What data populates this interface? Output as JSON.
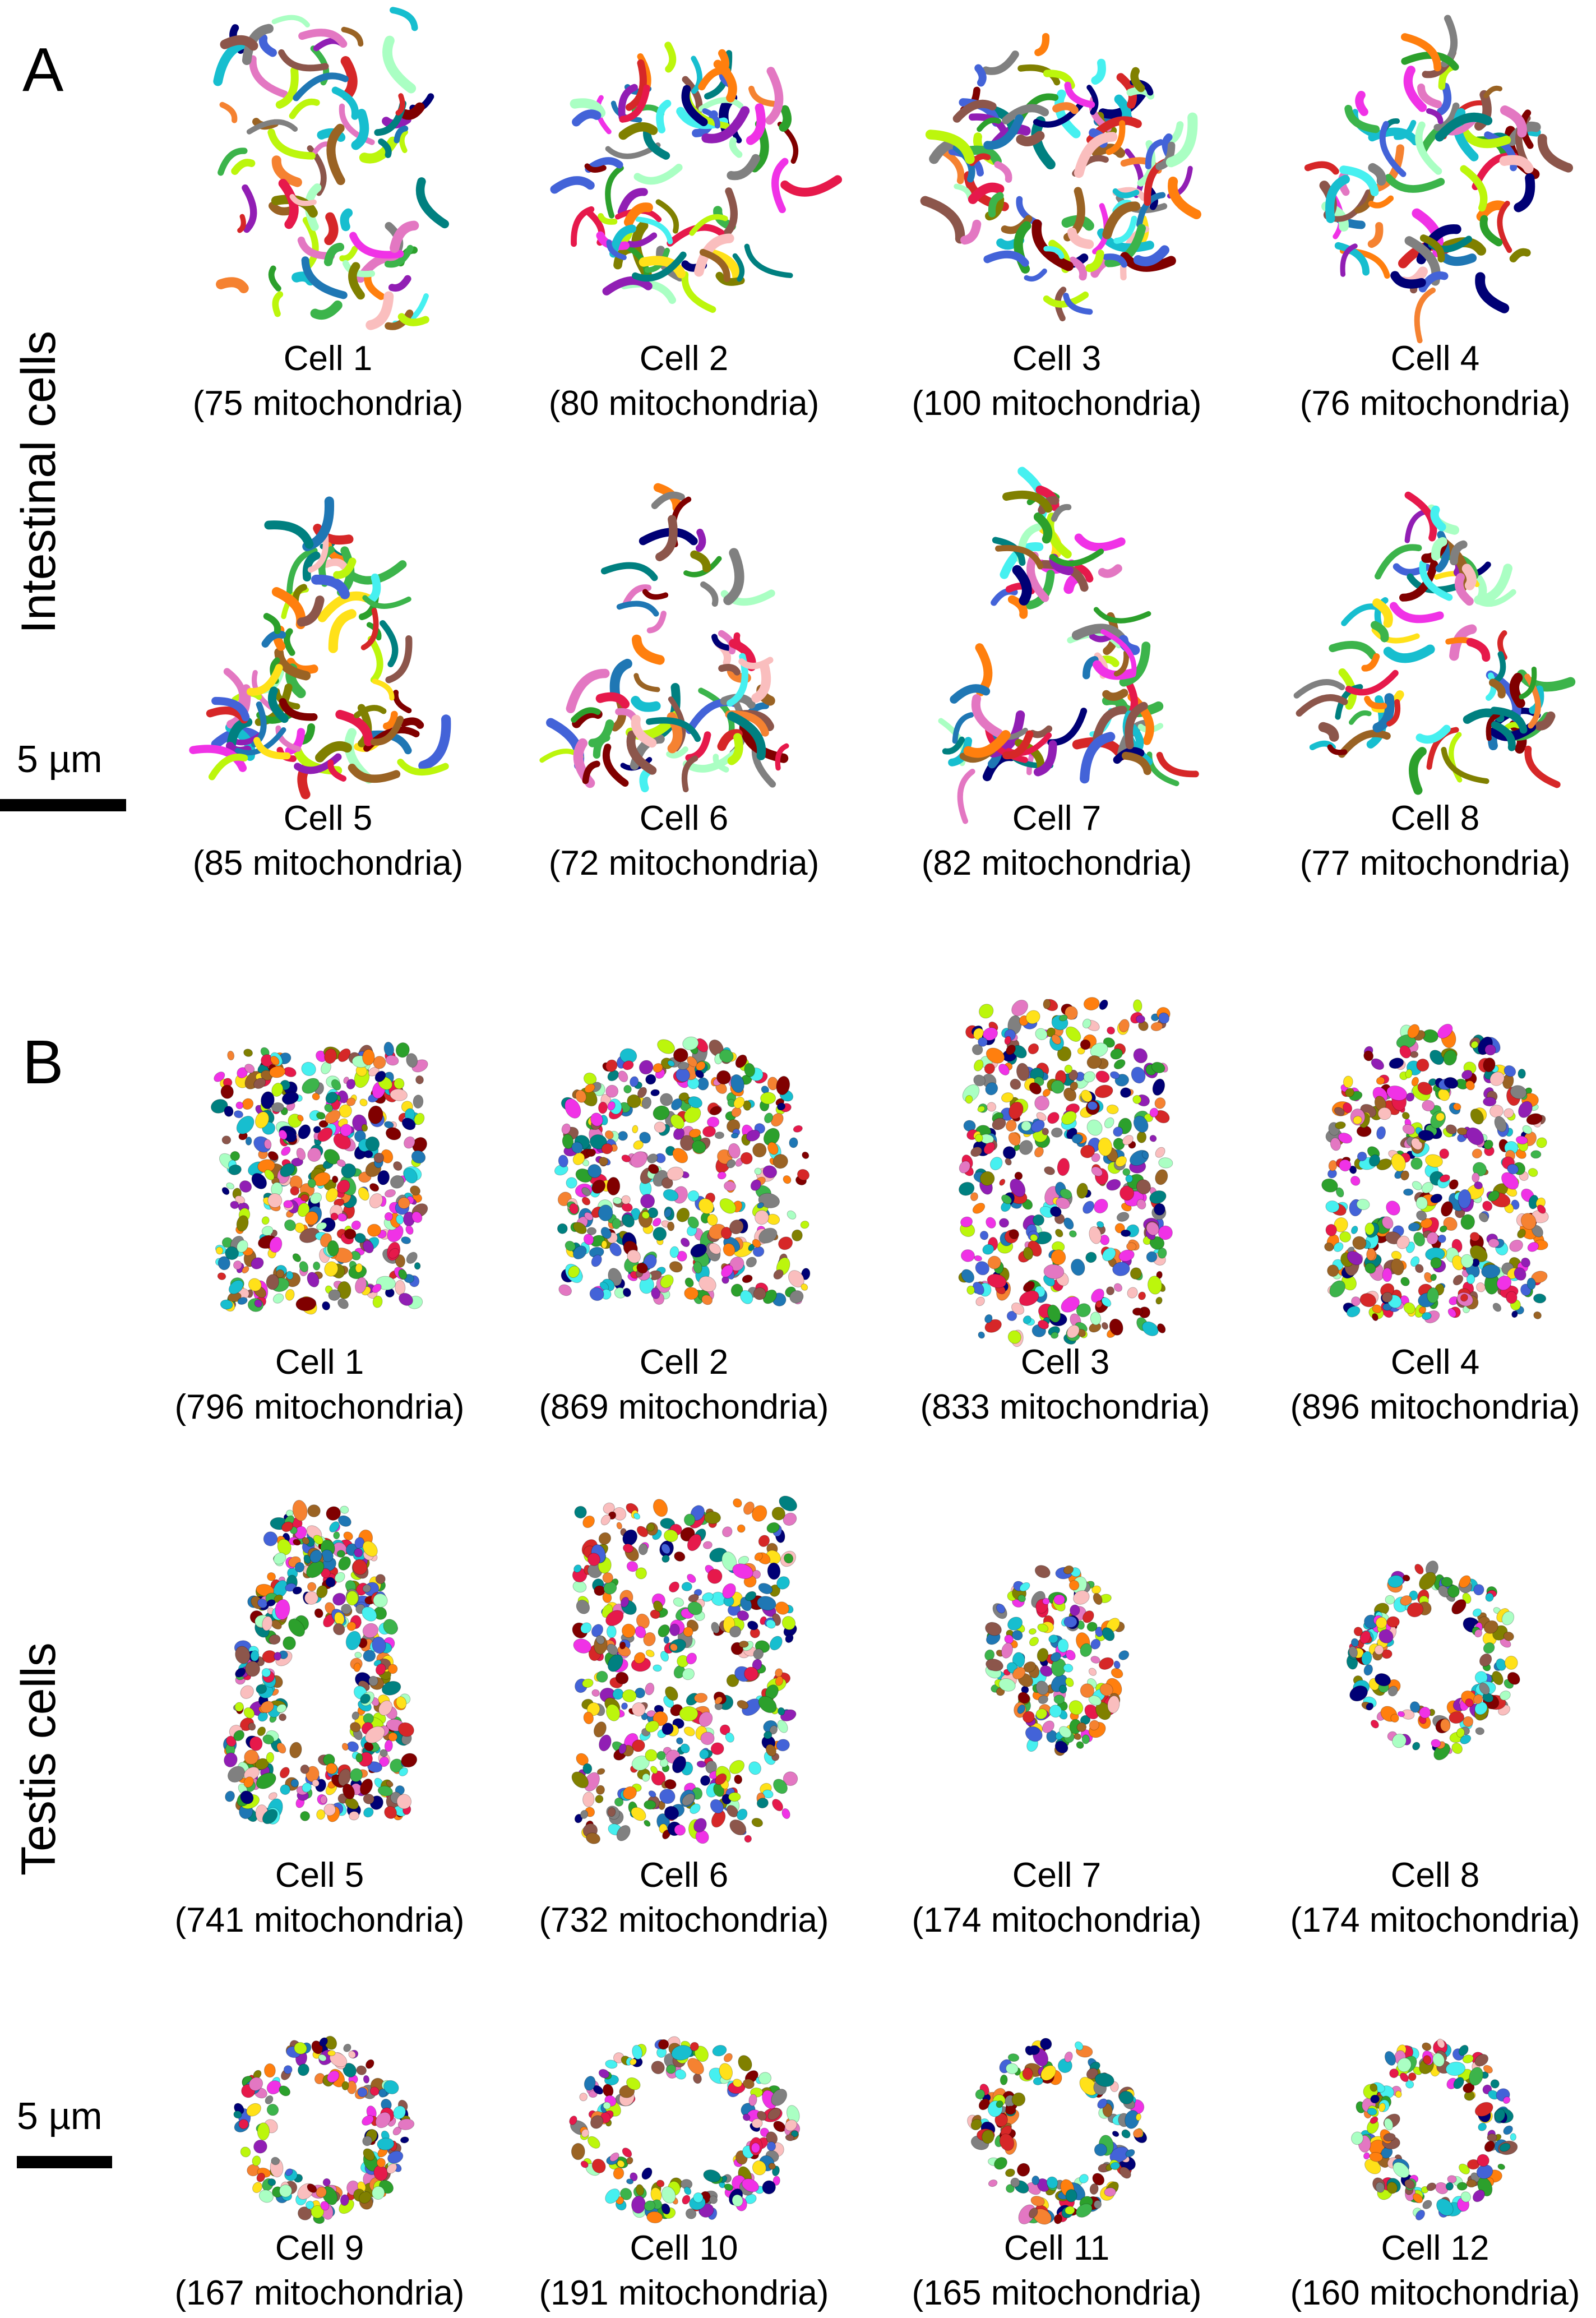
{
  "panel_a": {
    "letter": "A",
    "label": "Intestinal cells",
    "scale": "5 µm",
    "cells": [
      {
        "name": "Cell 1",
        "count": "(75 mitochondria)",
        "shape": "tall",
        "style": "tube"
      },
      {
        "name": "Cell 2",
        "count": "(80 mitochondria)",
        "shape": "round",
        "style": "tube"
      },
      {
        "name": "Cell 3",
        "count": "(100 mitochondria)",
        "shape": "round",
        "style": "tube"
      },
      {
        "name": "Cell 4",
        "count": "(76 mitochondria)",
        "shape": "round",
        "style": "tube"
      },
      {
        "name": "Cell 5",
        "count": "(85 mitochondria)",
        "shape": "triangle",
        "style": "tube"
      },
      {
        "name": "Cell 6",
        "count": "(72 mitochondria)",
        "shape": "triangle",
        "style": "tube"
      },
      {
        "name": "Cell 7",
        "count": "(82 mitochondria)",
        "shape": "triangle",
        "style": "tube"
      },
      {
        "name": "Cell 8",
        "count": "(77 mitochondria)",
        "shape": "triangle",
        "style": "tube"
      }
    ]
  },
  "panel_b": {
    "letter": "B",
    "label": "Testis cells",
    "scale": "5 µm",
    "cells": [
      {
        "name": "Cell 1",
        "count": "(796 mitochondria)",
        "shape": "block",
        "style": "dots"
      },
      {
        "name": "Cell 2",
        "count": "(869 mitochondria)",
        "shape": "dome",
        "style": "dots"
      },
      {
        "name": "Cell 3",
        "count": "(833 mitochondria)",
        "shape": "tallblock",
        "style": "dots"
      },
      {
        "name": "Cell 4",
        "count": "(896 mitochondria)",
        "shape": "dome",
        "style": "dots"
      },
      {
        "name": "Cell 5",
        "count": "(741 mitochondria)",
        "shape": "drop",
        "style": "dots"
      },
      {
        "name": "Cell 6",
        "count": "(732 mitochondria)",
        "shape": "tallblock",
        "style": "dots"
      },
      {
        "name": "Cell 7",
        "count": "(174 mitochondria)",
        "shape": "small",
        "style": "dots"
      },
      {
        "name": "Cell 8",
        "count": "(174 mitochondria)",
        "shape": "ring",
        "style": "dots"
      },
      {
        "name": "Cell 9",
        "count": "(167 mitochondria)",
        "shape": "ring",
        "style": "dots"
      },
      {
        "name": "Cell 10",
        "count": "(191 mitochondria)",
        "shape": "ring",
        "style": "dots"
      },
      {
        "name": "Cell 11",
        "count": "(165 mitochondria)",
        "shape": "ring",
        "style": "dots"
      },
      {
        "name": "Cell 12",
        "count": "(160 mitochondria)",
        "shape": "ring",
        "style": "dots"
      }
    ]
  },
  "palette": [
    "#e6194b",
    "#3cb44b",
    "#ffe119",
    "#4363d8",
    "#f58231",
    "#911eb4",
    "#46f0f0",
    "#f032e6",
    "#bcf60c",
    "#fabebe",
    "#008080",
    "#9a6324",
    "#800000",
    "#aaffc3",
    "#808000",
    "#000075",
    "#808080",
    "#e377c2",
    "#17becf",
    "#2ca02c",
    "#d62728",
    "#1f77b4",
    "#ff7f0e",
    "#8c564b"
  ]
}
